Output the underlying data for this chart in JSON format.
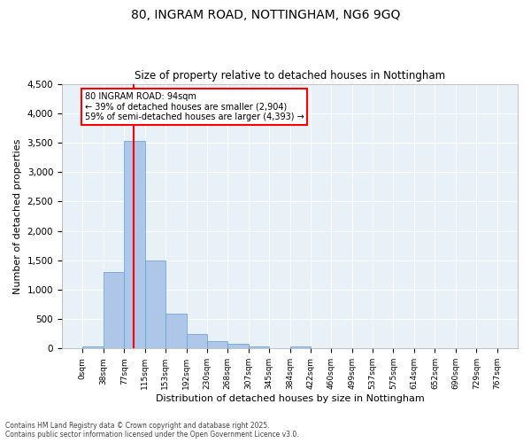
{
  "title_line1": "80, INGRAM ROAD, NOTTINGHAM, NG6 9GQ",
  "title_line2": "Size of property relative to detached houses in Nottingham",
  "xlabel": "Distribution of detached houses by size in Nottingham",
  "ylabel": "Number of detached properties",
  "bar_values": [
    30,
    1300,
    3530,
    1500,
    600,
    250,
    130,
    80,
    30,
    10,
    40,
    0,
    0,
    0,
    0,
    0,
    0,
    0,
    0,
    0
  ],
  "bar_edges": [
    0,
    38,
    77,
    115,
    153,
    192,
    230,
    268,
    307,
    345,
    384,
    422,
    460,
    499,
    537,
    575,
    614,
    652,
    690,
    729,
    767
  ],
  "tick_labels": [
    "0sqm",
    "38sqm",
    "77sqm",
    "115sqm",
    "153sqm",
    "192sqm",
    "230sqm",
    "268sqm",
    "307sqm",
    "345sqm",
    "384sqm",
    "422sqm",
    "460sqm",
    "499sqm",
    "537sqm",
    "575sqm",
    "614sqm",
    "652sqm",
    "690sqm",
    "729sqm",
    "767sqm"
  ],
  "bar_color": "#aec6e8",
  "bar_edge_color": "#5a9fd4",
  "vline_x": 94,
  "vline_color": "red",
  "ylim": [
    0,
    4500
  ],
  "yticks": [
    0,
    500,
    1000,
    1500,
    2000,
    2500,
    3000,
    3500,
    4000,
    4500
  ],
  "annotation_text": "80 INGRAM ROAD: 94sqm\n← 39% of detached houses are smaller (2,904)\n59% of semi-detached houses are larger (4,393) →",
  "annotation_box_color": "white",
  "annotation_box_edge": "red",
  "bg_color": "#e8f0f8",
  "footer_line1": "Contains HM Land Registry data © Crown copyright and database right 2025.",
  "footer_line2": "Contains public sector information licensed under the Open Government Licence v3.0."
}
